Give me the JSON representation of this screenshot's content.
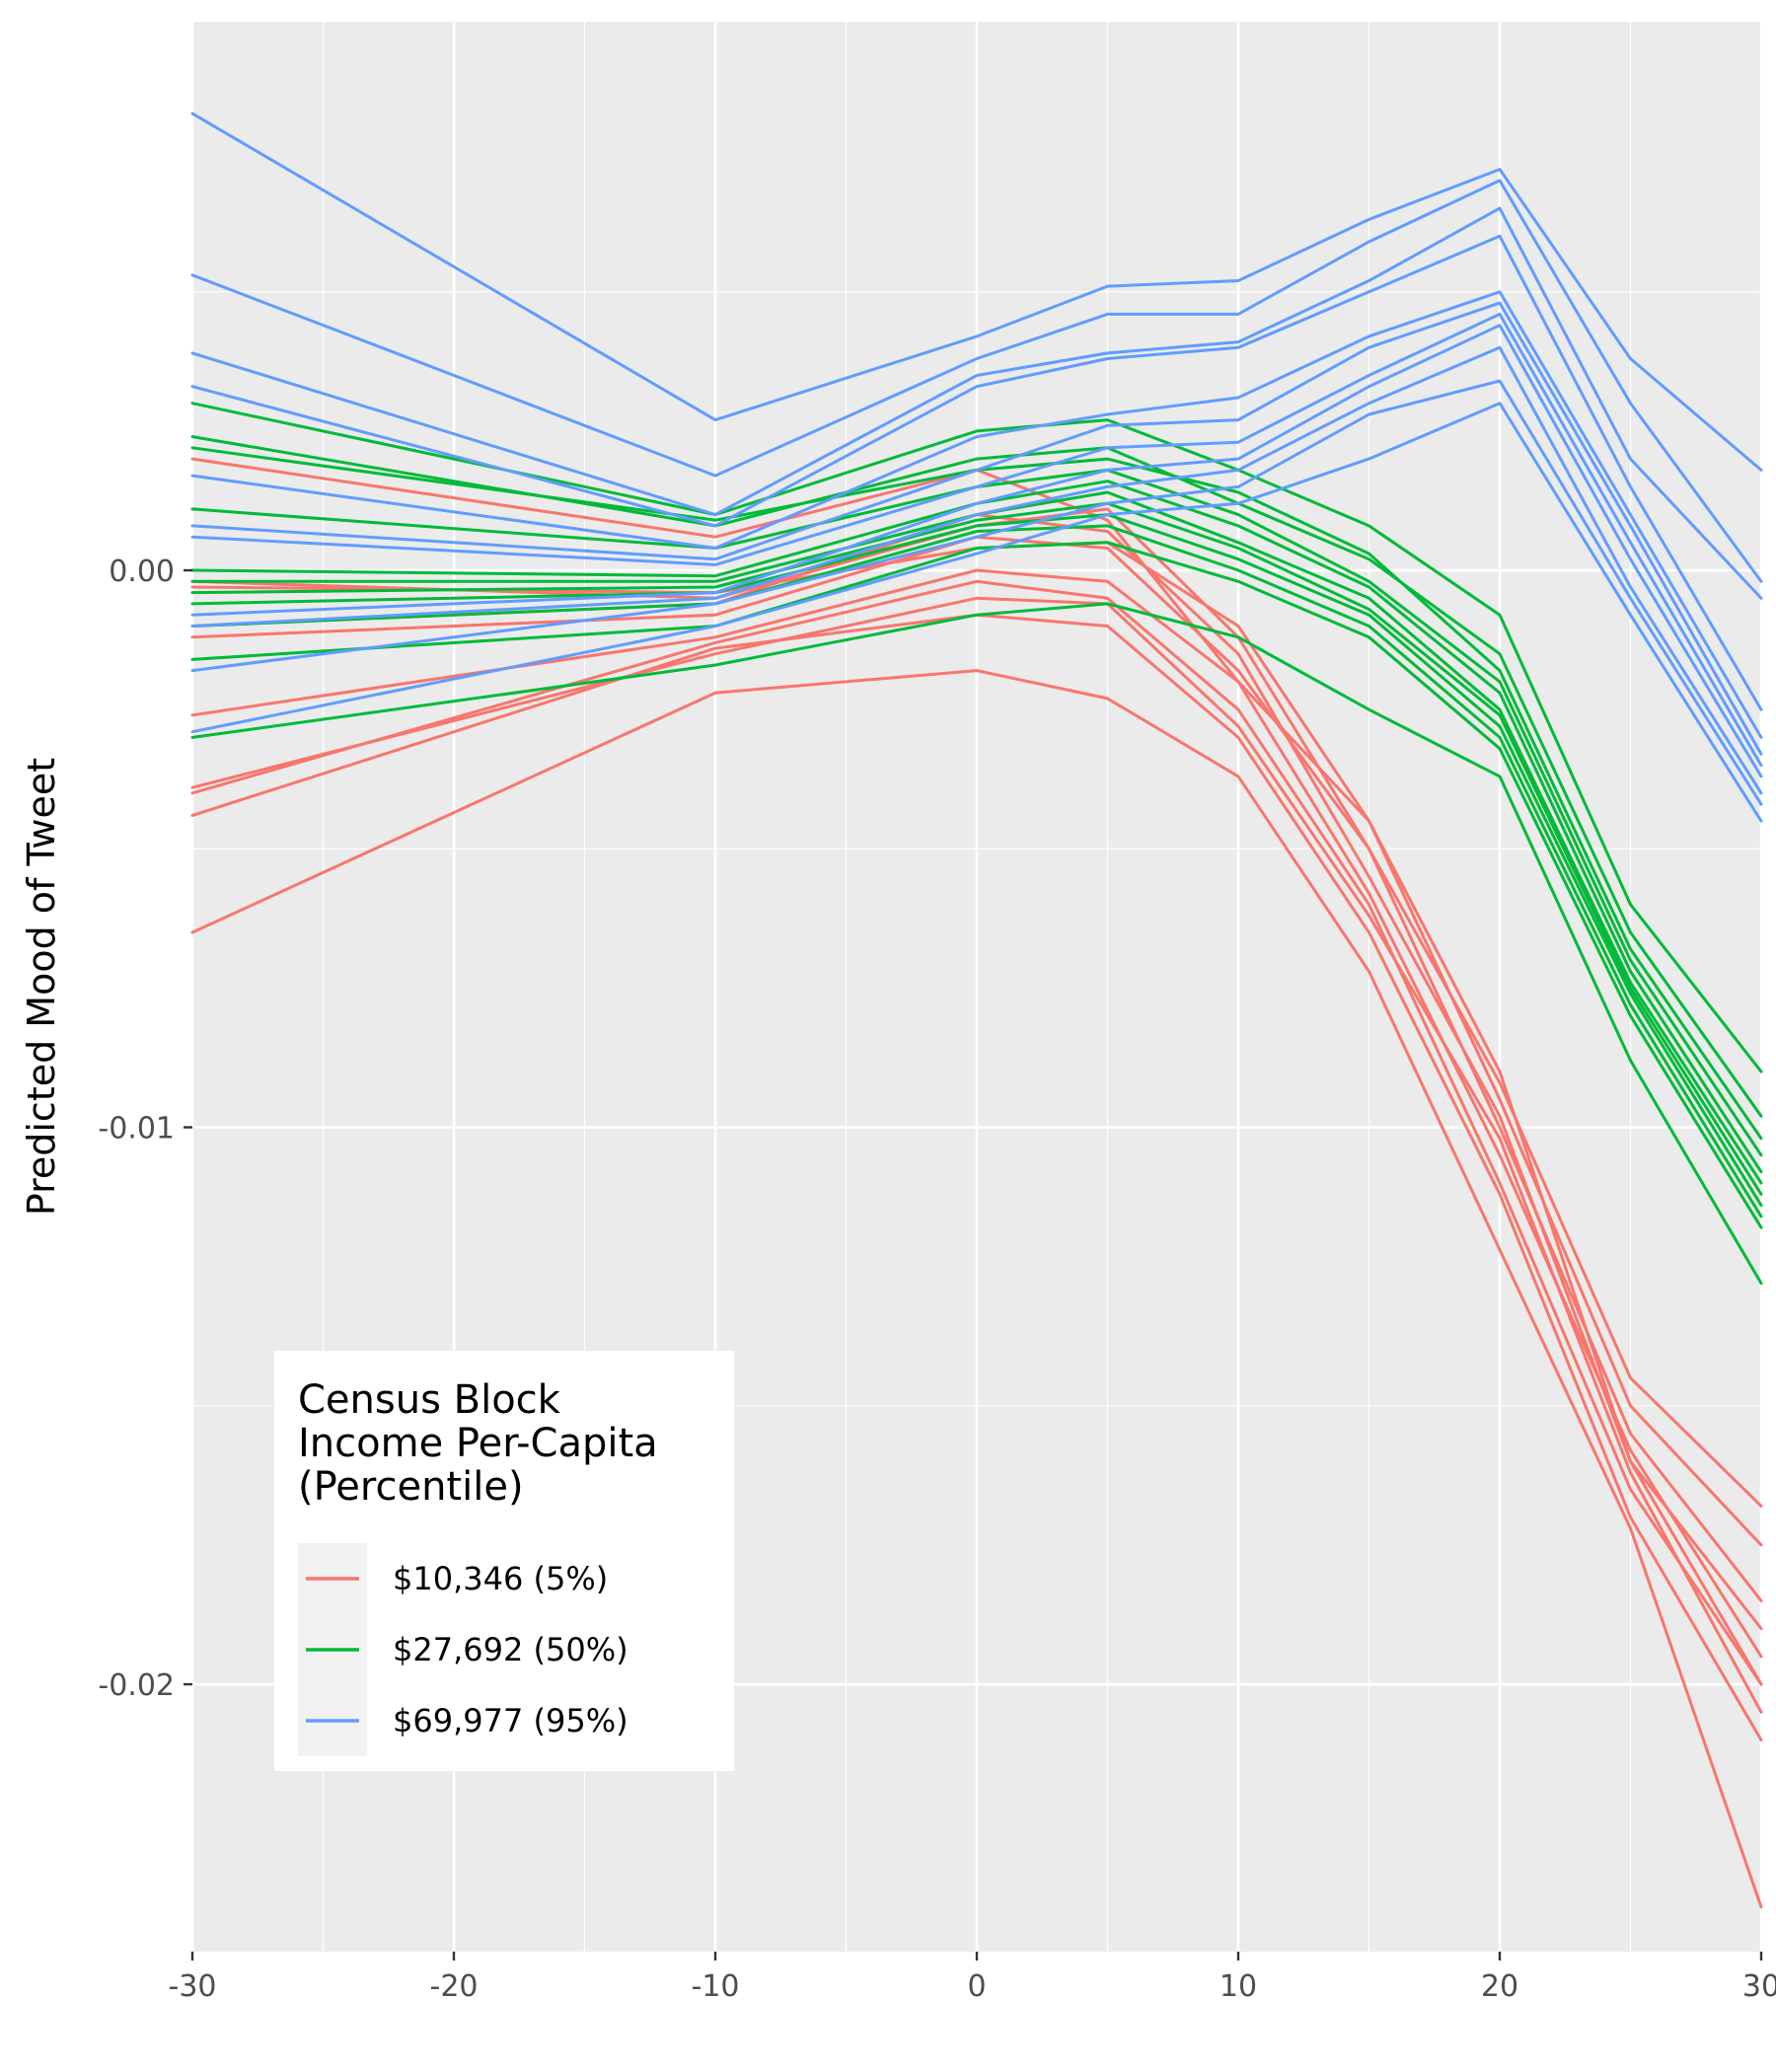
{
  "chart_data": {
    "type": "line",
    "ylabel": "Predicted Mood of Tweet",
    "xlabel": "",
    "xlim": [
      -30,
      30
    ],
    "ylim": [
      -0.0248,
      0.00985
    ],
    "grid": true,
    "x": [
      -30,
      -10,
      0,
      5,
      10,
      15,
      20,
      25,
      30
    ],
    "x_ticks": [
      {
        "value": -30,
        "label": "-30"
      },
      {
        "value": -20,
        "label": "-20"
      },
      {
        "value": -10,
        "label": "-10"
      },
      {
        "value": 0,
        "label": "0"
      },
      {
        "value": 10,
        "label": "10"
      },
      {
        "value": 20,
        "label": "20"
      },
      {
        "value": 30,
        "label": "30"
      }
    ],
    "y_ticks": [
      {
        "value": 0,
        "label": "0.00"
      },
      {
        "value": -0.01,
        "label": "-0.01"
      },
      {
        "value": -0.02,
        "label": "-0.02"
      }
    ],
    "legend": {
      "title_lines": [
        "Census Block",
        "Income Per-Capita",
        "(Percentile)"
      ],
      "placement": "bottom-left",
      "entries": [
        {
          "label": "$10,346 (5%)",
          "color": "#F8766D"
        },
        {
          "label": "$27,692 (50%)",
          "color": "#00BA38"
        },
        {
          "label": "$69,977 (95%)",
          "color": "#619CFF"
        }
      ]
    },
    "series": [
      {
        "group": "$10,346 (5%)",
        "color": "#F8766D",
        "lines": [
          [
            0.002,
            0.0006,
            0.0018,
            0.0009,
            -0.002,
            -0.0045,
            -0.009,
            -0.016,
            -0.02
          ],
          [
            -0.0003,
            -0.0004,
            0.0004,
            0.0005,
            -0.001,
            -0.0045,
            -0.0095,
            -0.015,
            -0.0175
          ],
          [
            -0.0002,
            -0.0005,
            0.0008,
            0.0011,
            -0.0012,
            -0.005,
            -0.01,
            -0.0155,
            -0.0185
          ],
          [
            -0.001,
            -0.0006,
            0.001,
            0.0007,
            -0.0015,
            -0.0055,
            -0.0098,
            -0.016,
            -0.019
          ],
          [
            -0.0012,
            -0.0008,
            0.0006,
            0.0004,
            -0.0018,
            -0.005,
            -0.0092,
            -0.0145,
            -0.0168
          ],
          [
            -0.0026,
            -0.0012,
            0.0,
            -0.0002,
            -0.002,
            -0.0058,
            -0.0105,
            -0.0158,
            -0.0195
          ],
          [
            -0.004,
            -0.0013,
            -0.0002,
            -0.0005,
            -0.0025,
            -0.006,
            -0.011,
            -0.0165,
            -0.02
          ],
          [
            -0.0039,
            -0.0015,
            -0.0005,
            -0.0006,
            -0.0028,
            -0.0062,
            -0.0102,
            -0.0162,
            -0.0205
          ],
          [
            -0.0044,
            -0.0014,
            -0.0008,
            -0.001,
            -0.003,
            -0.0065,
            -0.0112,
            -0.017,
            -0.021
          ],
          [
            -0.0065,
            -0.0022,
            -0.0018,
            -0.0023,
            -0.0037,
            -0.0072,
            -0.0122,
            -0.0172,
            -0.024
          ]
        ]
      },
      {
        "group": "$27,692 (50%)",
        "color": "#00BA38",
        "lines": [
          [
            0.003,
            0.001,
            0.0025,
            0.0027,
            0.0018,
            0.0008,
            -0.0008,
            -0.006,
            -0.009
          ],
          [
            0.0024,
            0.0008,
            0.002,
            0.0022,
            0.0012,
            0.0002,
            -0.0015,
            -0.0065,
            -0.0098
          ],
          [
            0.0022,
            0.0009,
            0.0018,
            0.002,
            0.0014,
            0.0003,
            -0.0018,
            -0.0068,
            -0.0102
          ],
          [
            0.0011,
            0.0004,
            0.0015,
            0.0018,
            0.001,
            -0.0002,
            -0.002,
            -0.007,
            -0.0105
          ],
          [
            0.0,
            -0.0001,
            0.0012,
            0.0016,
            0.0008,
            -0.0003,
            -0.0022,
            -0.0072,
            -0.0108
          ],
          [
            -0.0002,
            -0.0002,
            0.001,
            0.0014,
            0.0005,
            -0.0005,
            -0.0025,
            -0.0074,
            -0.011
          ],
          [
            -0.0004,
            -0.0003,
            0.0009,
            0.0012,
            0.0004,
            -0.0007,
            -0.0026,
            -0.0075,
            -0.0112
          ],
          [
            -0.0006,
            -0.0004,
            0.0008,
            0.001,
            0.0002,
            -0.0008,
            -0.0028,
            -0.0076,
            -0.0114
          ],
          [
            -0.001,
            -0.0006,
            0.0007,
            0.0008,
            0.0,
            -0.001,
            -0.003,
            -0.0078,
            -0.0116
          ],
          [
            -0.0016,
            -0.001,
            0.0004,
            0.0005,
            -0.0002,
            -0.0012,
            -0.0032,
            -0.008,
            -0.0118
          ],
          [
            -0.003,
            -0.0017,
            -0.0008,
            -0.0006,
            -0.0012,
            -0.0025,
            -0.0037,
            -0.0088,
            -0.0128
          ]
        ]
      },
      {
        "group": "$69,977 (95%)",
        "color": "#619CFF",
        "lines": [
          [
            0.0082,
            0.0027,
            0.0042,
            0.0051,
            0.0052,
            0.0063,
            0.0072,
            0.0038,
            0.0018
          ],
          [
            0.0053,
            0.0017,
            0.0038,
            0.0046,
            0.0046,
            0.0059,
            0.007,
            0.003,
            -0.0002
          ],
          [
            0.0039,
            0.001,
            0.0035,
            0.0039,
            0.0041,
            0.0052,
            0.0065,
            0.002,
            -0.0005
          ],
          [
            0.0033,
            0.0008,
            0.0033,
            0.0038,
            0.004,
            0.005,
            0.006,
            0.0015,
            -0.0025
          ],
          [
            0.0017,
            0.0004,
            0.0024,
            0.0028,
            0.0031,
            0.0042,
            0.005,
            0.001,
            -0.003
          ],
          [
            0.0008,
            0.0002,
            0.0018,
            0.0026,
            0.0027,
            0.004,
            0.0048,
            0.0008,
            -0.0033
          ],
          [
            0.0006,
            0.0001,
            0.0015,
            0.0022,
            0.0023,
            0.0035,
            0.0046,
            0.0005,
            -0.0035
          ],
          [
            -0.0008,
            -0.0004,
            0.0012,
            0.0018,
            0.002,
            0.0033,
            0.0044,
            0.0002,
            -0.0037
          ],
          [
            -0.001,
            -0.0005,
            0.001,
            0.0015,
            0.0018,
            0.003,
            0.004,
            -0.0003,
            -0.004
          ],
          [
            -0.0018,
            -0.0006,
            0.0006,
            0.0012,
            0.0015,
            0.0028,
            0.0034,
            -0.0005,
            -0.0042
          ],
          [
            -0.0029,
            -0.001,
            0.0003,
            0.001,
            0.0012,
            0.002,
            0.003,
            -0.0008,
            -0.0045
          ]
        ]
      }
    ]
  }
}
